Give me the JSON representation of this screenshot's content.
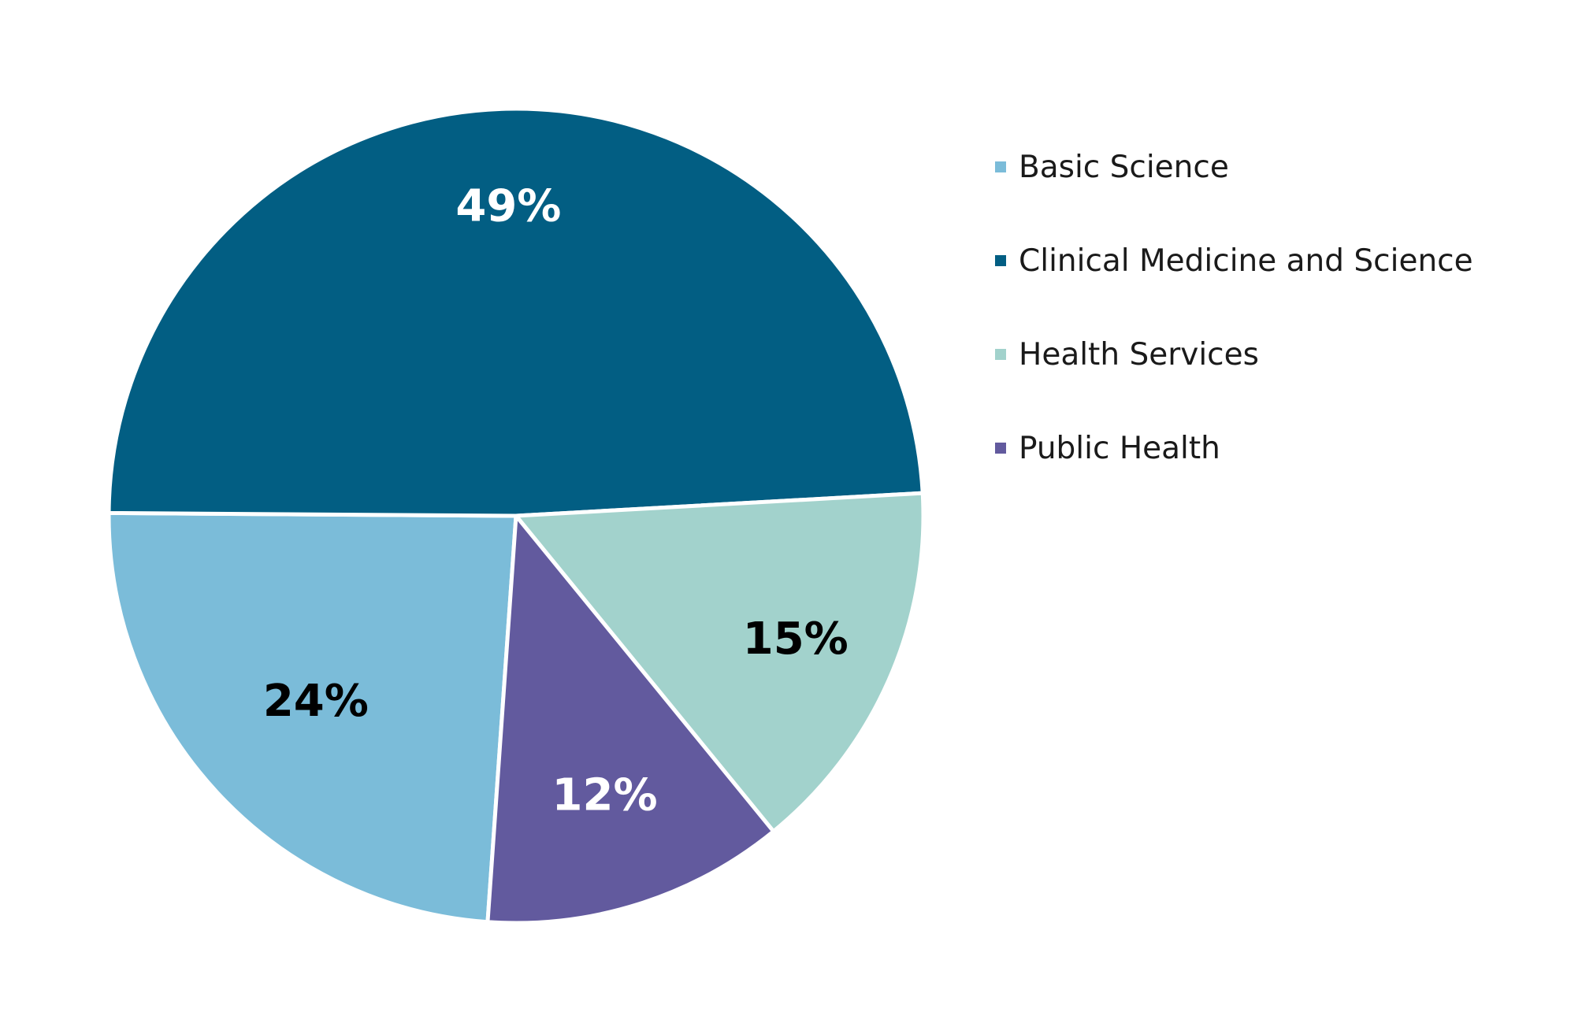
{
  "chart_data": {
    "type": "pie",
    "title": "",
    "categories": [
      "Basic Science",
      "Clinical Medicine and Science",
      "Health Services",
      "Public Health"
    ],
    "values": [
      24,
      49,
      15,
      12
    ],
    "labels": [
      "24%",
      "49%",
      "15%",
      "12%"
    ],
    "colors": [
      "#7bbcd9",
      "#025e83",
      "#a2d2cc",
      "#625a9e"
    ],
    "label_colors": [
      "#000000",
      "#ffffff",
      "#000000",
      "#ffffff"
    ],
    "legend_position": "right"
  },
  "legend": {
    "items": [
      {
        "label": "Basic Science",
        "color": "#7bbcd9"
      },
      {
        "label": "Clinical Medicine and Science",
        "color": "#025e83"
      },
      {
        "label": "Health Services",
        "color": "#a2d2cc"
      },
      {
        "label": "Public Health",
        "color": "#625a9e"
      }
    ]
  }
}
